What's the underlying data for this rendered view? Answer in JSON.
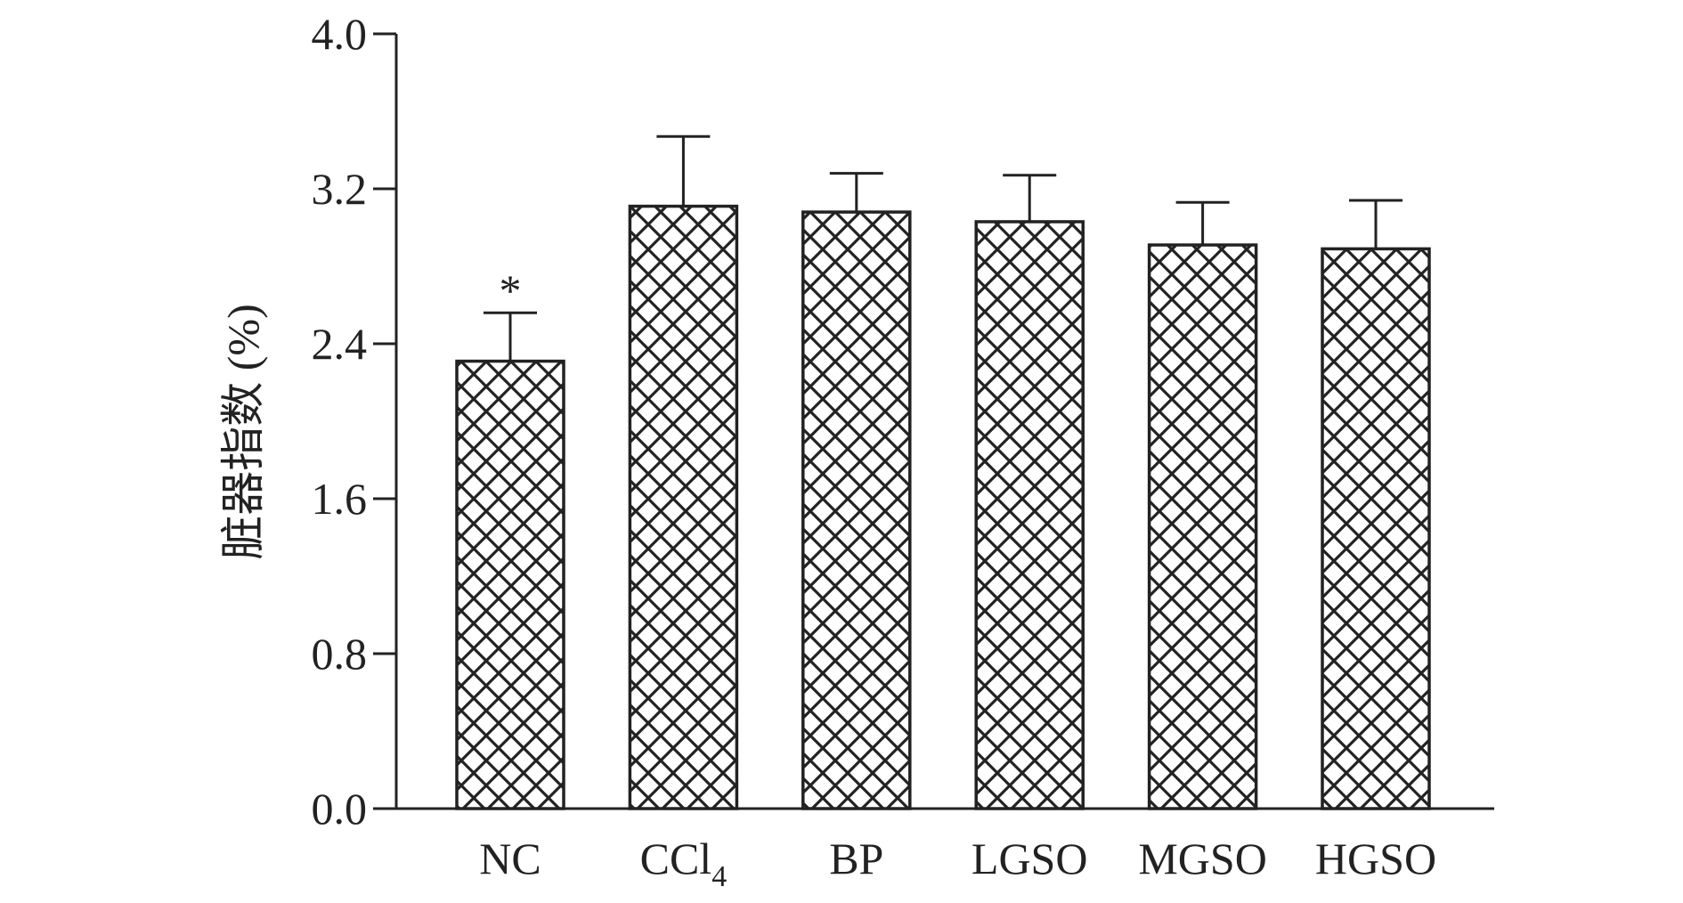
{
  "chart_data": {
    "type": "bar",
    "categories": [
      {
        "base": "NC",
        "sub": ""
      },
      {
        "base": "CCl",
        "sub": "4"
      },
      {
        "base": "BP",
        "sub": ""
      },
      {
        "base": "LGSO",
        "sub": ""
      },
      {
        "base": "MGSO",
        "sub": ""
      },
      {
        "base": "HGSO",
        "sub": ""
      }
    ],
    "series": [
      {
        "values": [
          2.31,
          3.11,
          3.08,
          3.03,
          2.91,
          2.89
        ],
        "errors": [
          0.25,
          0.36,
          0.2,
          0.24,
          0.22,
          0.25
        ],
        "annotations": [
          "*",
          "",
          "",
          "",
          "",
          ""
        ]
      }
    ],
    "ylabel": "脏器指数 (%)",
    "xlabel": "",
    "ylim": [
      0.0,
      4.0
    ],
    "yticks": [
      "0.0",
      "0.8",
      "1.6",
      "2.4",
      "3.2",
      "4.0"
    ],
    "grid": false,
    "legend": "none",
    "bar_fill": "crosshatch",
    "colors": {
      "ink": "#222222",
      "background": "#ffffff"
    }
  }
}
